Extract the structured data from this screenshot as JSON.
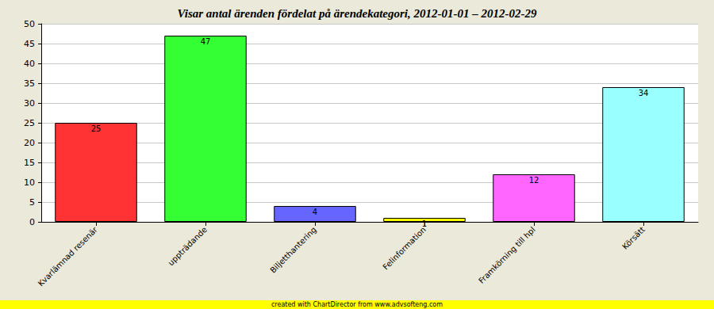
{
  "chart_data": {
    "type": "bar",
    "title": "Visar antal ärenden fördelat på ärendekategori, 2012-01-01 – 2012-02-29",
    "categories": [
      "Kvarlämnad resenär",
      "uppträdande",
      "Biljetthantering",
      "Felinformation",
      "Framkörning till hpl",
      "Körsätt"
    ],
    "values": [
      25,
      47,
      4,
      1,
      12,
      34
    ],
    "colors": [
      "#ff3333",
      "#33ff33",
      "#6666ff",
      "#ffff00",
      "#ff66ff",
      "#99ffff"
    ],
    "ylim": [
      0,
      50
    ],
    "yticks": [
      0,
      5,
      10,
      15,
      20,
      25,
      30,
      35,
      40,
      45,
      50
    ],
    "grid": true,
    "data_labels": true,
    "annotations": [
      "created with ChartDirector from www.advsofteng.com"
    ]
  }
}
